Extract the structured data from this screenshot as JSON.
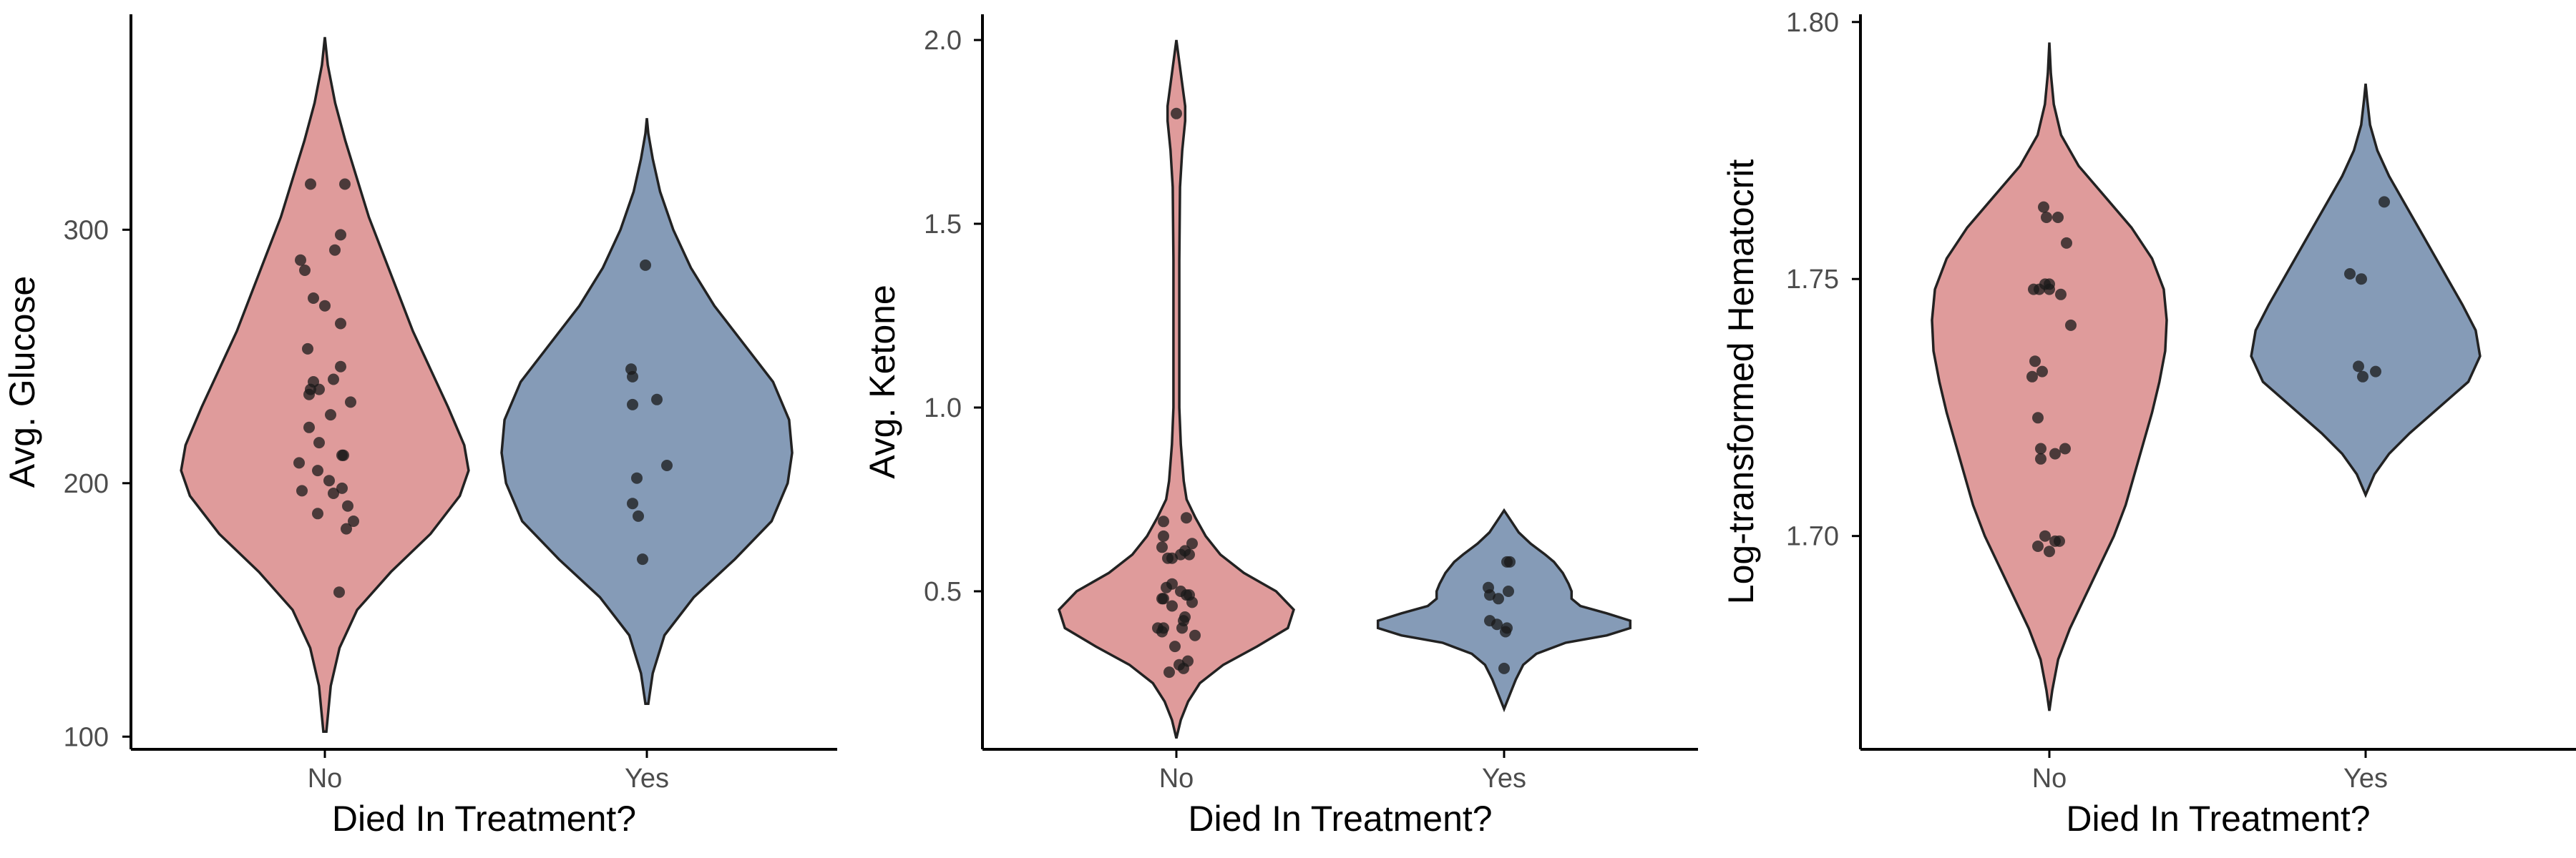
{
  "colors": {
    "No": "#d98a89",
    "Yes": "#7089aa"
  },
  "chart_data": [
    {
      "type": "violin",
      "xlabel": "Died In Treatment?",
      "ylabel": "Avg. Glucose",
      "categories": [
        "No",
        "Yes"
      ],
      "ylim": [
        95,
        385
      ],
      "yticks": [
        100,
        200,
        300
      ],
      "ytick_labels": [
        "100",
        "200",
        "300"
      ],
      "violins": [
        {
          "name": "No",
          "profile": [
            [
              102,
              0.01
            ],
            [
              120,
              0.04
            ],
            [
              135,
              0.1
            ],
            [
              150,
              0.22
            ],
            [
              165,
              0.45
            ],
            [
              180,
              0.72
            ],
            [
              195,
              0.92
            ],
            [
              205,
              0.98
            ],
            [
              215,
              0.95
            ],
            [
              230,
              0.84
            ],
            [
              245,
              0.72
            ],
            [
              260,
              0.6
            ],
            [
              275,
              0.5
            ],
            [
              290,
              0.4
            ],
            [
              305,
              0.3
            ],
            [
              320,
              0.22
            ],
            [
              335,
              0.14
            ],
            [
              350,
              0.07
            ],
            [
              365,
              0.02
            ],
            [
              376,
              0.0
            ]
          ],
          "points": [
            [
              157,
              0.1
            ],
            [
              182,
              0.15
            ],
            [
              185,
              0.2
            ],
            [
              188,
              -0.05
            ],
            [
              191,
              0.16
            ],
            [
              196,
              0.06
            ],
            [
              197,
              -0.16
            ],
            [
              198,
              0.12
            ],
            [
              201,
              0.03
            ],
            [
              205,
              -0.05
            ],
            [
              208,
              -0.18
            ],
            [
              211,
              0.13
            ],
            [
              211,
              0.12
            ],
            [
              216,
              -0.04
            ],
            [
              222,
              -0.11
            ],
            [
              227,
              0.04
            ],
            [
              232,
              0.18
            ],
            [
              235,
              -0.11
            ],
            [
              237,
              -0.04
            ],
            [
              237,
              -0.1
            ],
            [
              240,
              -0.08
            ],
            [
              241,
              0.06
            ],
            [
              246,
              0.11
            ],
            [
              253,
              -0.12
            ],
            [
              263,
              0.11
            ],
            [
              270,
              0.0
            ],
            [
              273,
              -0.08
            ],
            [
              284,
              -0.14
            ],
            [
              288,
              -0.17
            ],
            [
              292,
              0.07
            ],
            [
              298,
              0.11
            ],
            [
              318,
              -0.1
            ],
            [
              318,
              0.14
            ]
          ]
        },
        {
          "name": "Yes",
          "profile": [
            [
              113,
              0.01
            ],
            [
              125,
              0.04
            ],
            [
              140,
              0.12
            ],
            [
              155,
              0.32
            ],
            [
              170,
              0.6
            ],
            [
              185,
              0.85
            ],
            [
              200,
              0.96
            ],
            [
              212,
              0.99
            ],
            [
              225,
              0.97
            ],
            [
              240,
              0.86
            ],
            [
              255,
              0.66
            ],
            [
              270,
              0.46
            ],
            [
              285,
              0.3
            ],
            [
              300,
              0.18
            ],
            [
              315,
              0.09
            ],
            [
              328,
              0.04
            ],
            [
              338,
              0.01
            ],
            [
              344,
              0.0
            ]
          ],
          "points": [
            [
              170,
              -0.03
            ],
            [
              187,
              -0.06
            ],
            [
              192,
              -0.1
            ],
            [
              202,
              -0.07
            ],
            [
              207,
              0.14
            ],
            [
              231,
              -0.1
            ],
            [
              233,
              0.07
            ],
            [
              242,
              -0.1
            ],
            [
              245,
              -0.11
            ],
            [
              286,
              -0.01
            ]
          ]
        }
      ]
    },
    {
      "type": "violin",
      "xlabel": "Died In Treatment?",
      "ylabel": "Avg. Ketone",
      "categories": [
        "No",
        "Yes"
      ],
      "ylim": [
        0.07,
        2.07
      ],
      "yticks": [
        0.5,
        1.0,
        1.5,
        2.0
      ],
      "ytick_labels": [
        "0.5",
        "1.0",
        "1.5",
        "2.0"
      ],
      "violins": [
        {
          "name": "No",
          "profile": [
            [
              0.1,
              0.0
            ],
            [
              0.15,
              0.03
            ],
            [
              0.2,
              0.08
            ],
            [
              0.25,
              0.16
            ],
            [
              0.3,
              0.32
            ],
            [
              0.35,
              0.55
            ],
            [
              0.4,
              0.76
            ],
            [
              0.45,
              0.8
            ],
            [
              0.5,
              0.68
            ],
            [
              0.55,
              0.46
            ],
            [
              0.6,
              0.3
            ],
            [
              0.65,
              0.2
            ],
            [
              0.7,
              0.13
            ],
            [
              0.75,
              0.07
            ],
            [
              0.8,
              0.05
            ],
            [
              0.9,
              0.03
            ],
            [
              1.0,
              0.02
            ],
            [
              1.2,
              0.02
            ],
            [
              1.4,
              0.02
            ],
            [
              1.6,
              0.025
            ],
            [
              1.7,
              0.04
            ],
            [
              1.78,
              0.06
            ],
            [
              1.82,
              0.06
            ],
            [
              1.88,
              0.04
            ],
            [
              1.94,
              0.02
            ],
            [
              2.0,
              0.0
            ]
          ],
          "points": [
            [
              0.28,
              -0.05
            ],
            [
              0.29,
              0.05
            ],
            [
              0.3,
              0.02
            ],
            [
              0.31,
              0.08
            ],
            [
              0.35,
              -0.01
            ],
            [
              0.38,
              0.13
            ],
            [
              0.39,
              -0.1
            ],
            [
              0.4,
              -0.13
            ],
            [
              0.4,
              -0.09
            ],
            [
              0.4,
              0.04
            ],
            [
              0.42,
              0.05
            ],
            [
              0.43,
              0.06
            ],
            [
              0.46,
              -0.03
            ],
            [
              0.47,
              0.11
            ],
            [
              0.48,
              -0.09
            ],
            [
              0.48,
              -0.1
            ],
            [
              0.49,
              0.07
            ],
            [
              0.49,
              0.09
            ],
            [
              0.5,
              0.03
            ],
            [
              0.51,
              -0.07
            ],
            [
              0.52,
              -0.03
            ],
            [
              0.59,
              -0.03
            ],
            [
              0.59,
              -0.06
            ],
            [
              0.6,
              0.03
            ],
            [
              0.6,
              0.09
            ],
            [
              0.61,
              0.06
            ],
            [
              0.62,
              -0.1
            ],
            [
              0.63,
              0.11
            ],
            [
              0.65,
              -0.09
            ],
            [
              0.69,
              -0.09
            ],
            [
              0.7,
              0.07
            ],
            [
              1.8,
              0.0
            ]
          ]
        },
        {
          "name": "Yes",
          "profile": [
            [
              0.18,
              0.0
            ],
            [
              0.22,
              0.04
            ],
            [
              0.26,
              0.08
            ],
            [
              0.3,
              0.13
            ],
            [
              0.33,
              0.22
            ],
            [
              0.36,
              0.42
            ],
            [
              0.38,
              0.7
            ],
            [
              0.4,
              0.86
            ],
            [
              0.42,
              0.86
            ],
            [
              0.44,
              0.7
            ],
            [
              0.46,
              0.52
            ],
            [
              0.48,
              0.46
            ],
            [
              0.5,
              0.46
            ],
            [
              0.52,
              0.44
            ],
            [
              0.55,
              0.4
            ],
            [
              0.58,
              0.34
            ],
            [
              0.6,
              0.28
            ],
            [
              0.63,
              0.18
            ],
            [
              0.66,
              0.1
            ],
            [
              0.69,
              0.05
            ],
            [
              0.72,
              0.0
            ]
          ],
          "points": [
            [
              0.29,
              0.0
            ],
            [
              0.39,
              0.01
            ],
            [
              0.4,
              0.02
            ],
            [
              0.41,
              -0.05
            ],
            [
              0.42,
              -0.1
            ],
            [
              0.48,
              -0.04
            ],
            [
              0.49,
              -0.1
            ],
            [
              0.5,
              0.03
            ],
            [
              0.51,
              -0.11
            ],
            [
              0.58,
              0.02
            ],
            [
              0.58,
              0.04
            ]
          ]
        }
      ]
    },
    {
      "type": "violin",
      "xlabel": "Died In Treatment?",
      "ylabel": "Log-transformed Hematocrit",
      "categories": [
        "No",
        "Yes"
      ],
      "ylim": [
        1.6585,
        1.8015
      ],
      "yticks": [
        1.7,
        1.75,
        1.8
      ],
      "ytick_labels": [
        "1.70",
        "1.75",
        "1.80"
      ],
      "violins": [
        {
          "name": "No",
          "profile": [
            [
              1.666,
              0.0
            ],
            [
              1.67,
              0.02
            ],
            [
              1.676,
              0.06
            ],
            [
              1.682,
              0.14
            ],
            [
              1.688,
              0.24
            ],
            [
              1.694,
              0.34
            ],
            [
              1.7,
              0.44
            ],
            [
              1.706,
              0.52
            ],
            [
              1.712,
              0.58
            ],
            [
              1.718,
              0.64
            ],
            [
              1.724,
              0.7
            ],
            [
              1.73,
              0.75
            ],
            [
              1.736,
              0.79
            ],
            [
              1.742,
              0.8
            ],
            [
              1.748,
              0.78
            ],
            [
              1.754,
              0.7
            ],
            [
              1.76,
              0.56
            ],
            [
              1.766,
              0.38
            ],
            [
              1.772,
              0.2
            ],
            [
              1.778,
              0.08
            ],
            [
              1.784,
              0.03
            ],
            [
              1.79,
              0.01
            ],
            [
              1.796,
              0.0
            ]
          ],
          "points": [
            [
              1.697,
              0.0
            ],
            [
              1.698,
              -0.08
            ],
            [
              1.699,
              0.04
            ],
            [
              1.699,
              0.07
            ],
            [
              1.7,
              -0.03
            ],
            [
              1.715,
              -0.06
            ],
            [
              1.716,
              0.04
            ],
            [
              1.717,
              -0.06
            ],
            [
              1.717,
              0.11
            ],
            [
              1.723,
              -0.08
            ],
            [
              1.731,
              -0.12
            ],
            [
              1.732,
              -0.05
            ],
            [
              1.734,
              -0.1
            ],
            [
              1.741,
              0.15
            ],
            [
              1.747,
              0.08
            ],
            [
              1.748,
              -0.11
            ],
            [
              1.748,
              0.0
            ],
            [
              1.748,
              -0.07
            ],
            [
              1.749,
              -0.03
            ],
            [
              1.749,
              0.0
            ],
            [
              1.757,
              0.12
            ],
            [
              1.762,
              0.06
            ],
            [
              1.762,
              -0.02
            ],
            [
              1.764,
              -0.04
            ]
          ]
        },
        {
          "name": "Yes",
          "profile": [
            [
              1.708,
              0.0
            ],
            [
              1.712,
              0.06
            ],
            [
              1.716,
              0.16
            ],
            [
              1.72,
              0.3
            ],
            [
              1.725,
              0.5
            ],
            [
              1.73,
              0.7
            ],
            [
              1.735,
              0.78
            ],
            [
              1.74,
              0.75
            ],
            [
              1.745,
              0.66
            ],
            [
              1.75,
              0.56
            ],
            [
              1.755,
              0.46
            ],
            [
              1.76,
              0.36
            ],
            [
              1.765,
              0.26
            ],
            [
              1.77,
              0.16
            ],
            [
              1.775,
              0.08
            ],
            [
              1.78,
              0.03
            ],
            [
              1.785,
              0.01
            ],
            [
              1.788,
              0.0
            ]
          ],
          "points": [
            [
              1.731,
              -0.02
            ],
            [
              1.732,
              0.07
            ],
            [
              1.733,
              -0.05
            ],
            [
              1.75,
              -0.03
            ],
            [
              1.751,
              -0.11
            ],
            [
              1.765,
              0.13
            ]
          ]
        }
      ]
    }
  ]
}
